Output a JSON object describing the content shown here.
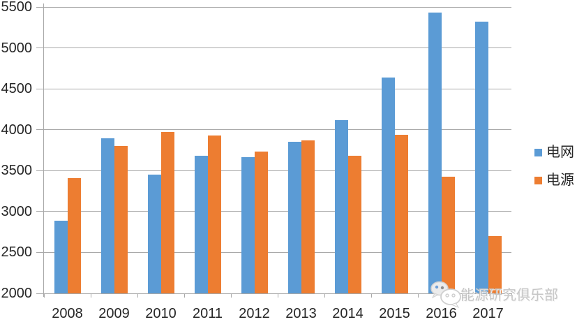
{
  "chart_data": {
    "type": "bar",
    "title": "",
    "categories": [
      "2008",
      "2009",
      "2010",
      "2011",
      "2012",
      "2013",
      "2014",
      "2015",
      "2016",
      "2017"
    ],
    "series": [
      {
        "name": "电网",
        "color": "#5b9bd5",
        "values": [
          2885,
          3898,
          3448,
          3682,
          3661,
          3856,
          4118,
          4640,
          5431,
          5320
        ]
      },
      {
        "name": "电源",
        "color": "#ed7d31",
        "values": [
          3413,
          3803,
          3969,
          3927,
          3732,
          3872,
          3686,
          3936,
          3429,
          2700
        ]
      }
    ],
    "ylim": [
      2000,
      5500
    ],
    "yticks": [
      2000,
      2500,
      3000,
      3500,
      4000,
      4500,
      5000,
      5500
    ],
    "xlabel": "",
    "ylabel": "",
    "grid": true,
    "legend_position": "right"
  },
  "legend": {
    "items": [
      {
        "label": "电网",
        "color": "#5b9bd5"
      },
      {
        "label": "电源",
        "color": "#ed7d31"
      }
    ]
  },
  "watermark": {
    "text": "能源研究俱乐部",
    "icon": "wechat-chat-bubbles-icon"
  },
  "colors": {
    "grid_blue": "#5b9bd5",
    "source_orange": "#ed7d31",
    "gridline_gray": "#a9a9a9",
    "label_gray": "#262626",
    "watermark_gray": "#c6c6c6"
  }
}
